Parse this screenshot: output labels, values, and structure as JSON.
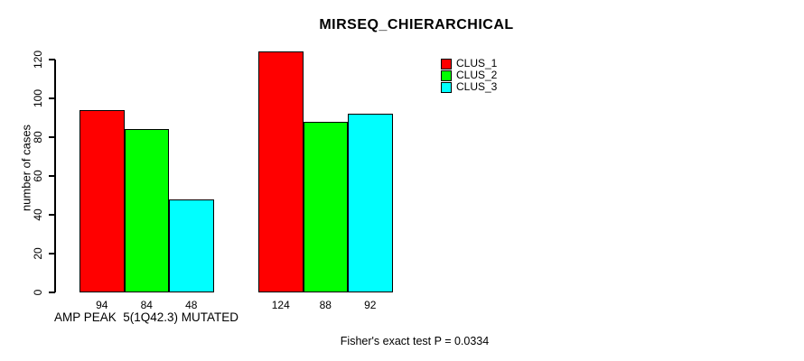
{
  "title": "MIRSEQ_CHIERARCHICAL",
  "footer_note": "Fisher's exact test P = 0.0334",
  "chart_data": {
    "type": "bar",
    "title": "MIRSEQ_CHIERARCHICAL",
    "xlabel": "",
    "ylabel": "number of cases",
    "ylim": [
      0,
      120
    ],
    "yticks": [
      0,
      20,
      40,
      60,
      80,
      100,
      120
    ],
    "grid": false,
    "legend_position": "top-right",
    "bar_value_labels_shown": true,
    "series": [
      {
        "name": "CLUS_1",
        "color": "#ff0000"
      },
      {
        "name": "CLUS_2",
        "color": "#00ff00"
      },
      {
        "name": "CLUS_3",
        "color": "#00ffff"
      }
    ],
    "groups": [
      {
        "label": "AMP PEAK  5(1Q42.3) MUTATED",
        "values": [
          94,
          84,
          48
        ]
      },
      {
        "label": "",
        "values": [
          124,
          88,
          92
        ]
      }
    ],
    "annotation": "Fisher's exact test P = 0.0334"
  },
  "colors": {
    "background": "#ffffff",
    "axis": "#000000",
    "bar_border": "#000000",
    "text": "#000000"
  }
}
